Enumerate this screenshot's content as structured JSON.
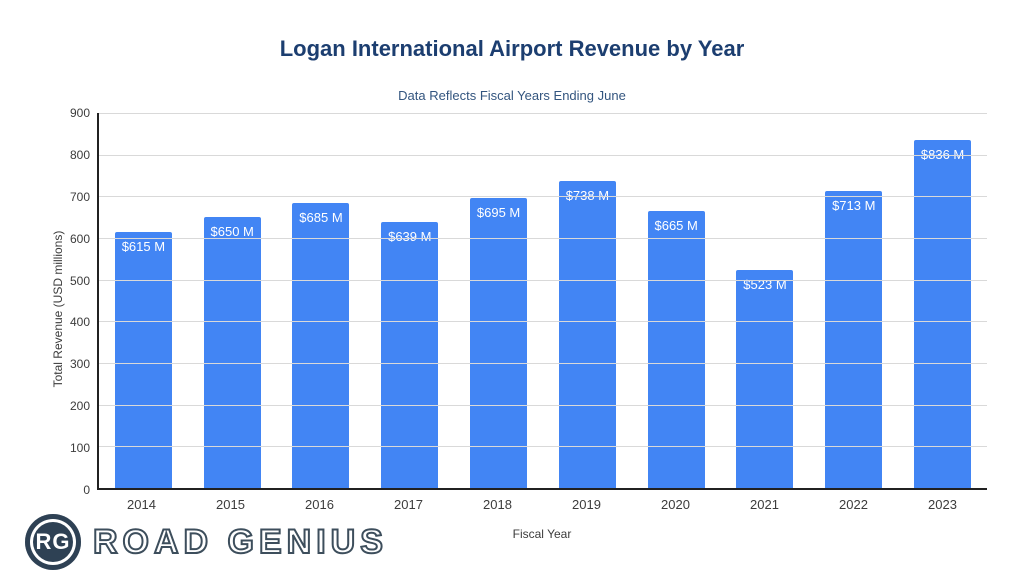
{
  "header": {
    "title": "Logan International Airport Revenue by Year",
    "subtitle": "Data Reflects Fiscal Years Ending June"
  },
  "chart_data": {
    "type": "bar",
    "title": "Logan International Airport Revenue by Year",
    "subtitle": "Data Reflects Fiscal Years Ending June",
    "categories": [
      "2014",
      "2015",
      "2016",
      "2017",
      "2018",
      "2019",
      "2020",
      "2021",
      "2022",
      "2023"
    ],
    "values": [
      615,
      650,
      685,
      639,
      695,
      738,
      665,
      523,
      713,
      836
    ],
    "bar_labels": [
      "$615 M",
      "$650 M",
      "$685 M",
      "$639 M",
      "$695 M",
      "$738 M",
      "$665 M",
      "$523 M",
      "$713 M",
      "$836 M"
    ],
    "xlabel": "Fiscal Year",
    "ylabel": "Total Revenue (USD millions)",
    "ylim": [
      0,
      900
    ],
    "ytick_step": 100,
    "grid": true,
    "legend": "none",
    "bar_color": "#4285f4",
    "bar_label_color": "#ffffff",
    "title_color": "#1c3e70",
    "subtitle_color": "#33557f"
  },
  "logo": {
    "monogram": "RG",
    "name": "ROAD GENIUS"
  }
}
